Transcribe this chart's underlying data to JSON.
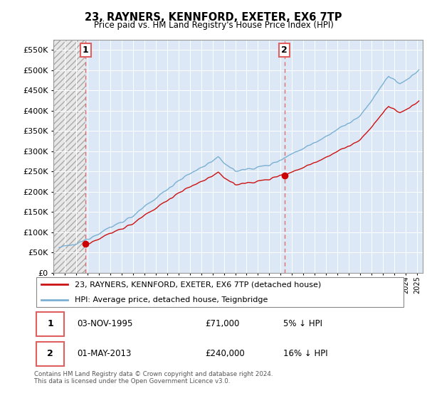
{
  "title": "23, RAYNERS, KENNFORD, EXETER, EX6 7TP",
  "subtitle": "Price paid vs. HM Land Registry's House Price Index (HPI)",
  "legend_property": "23, RAYNERS, KENNFORD, EXETER, EX6 7TP (detached house)",
  "legend_hpi": "HPI: Average price, detached house, Teignbridge",
  "sale1_date": "03-NOV-1995",
  "sale1_price": "£71,000",
  "sale1_note": "5% ↓ HPI",
  "sale2_date": "01-MAY-2013",
  "sale2_price": "£240,000",
  "sale2_note": "16% ↓ HPI",
  "footnote": "Contains HM Land Registry data © Crown copyright and database right 2024.\nThis data is licensed under the Open Government Licence v3.0.",
  "hpi_color": "#7ab0d4",
  "property_color": "#cc1111",
  "sale_marker_color": "#cc0000",
  "vline_color": "#e06060",
  "ylim": [
    0,
    575000
  ],
  "yticks": [
    0,
    50000,
    100000,
    150000,
    200000,
    250000,
    300000,
    350000,
    400000,
    450000,
    500000,
    550000
  ],
  "xlim_start": 1993.0,
  "xlim_end": 2025.5,
  "sale1_year": 1995.833,
  "sale2_year": 2013.333,
  "sale1_value": 71000,
  "sale2_value": 240000
}
